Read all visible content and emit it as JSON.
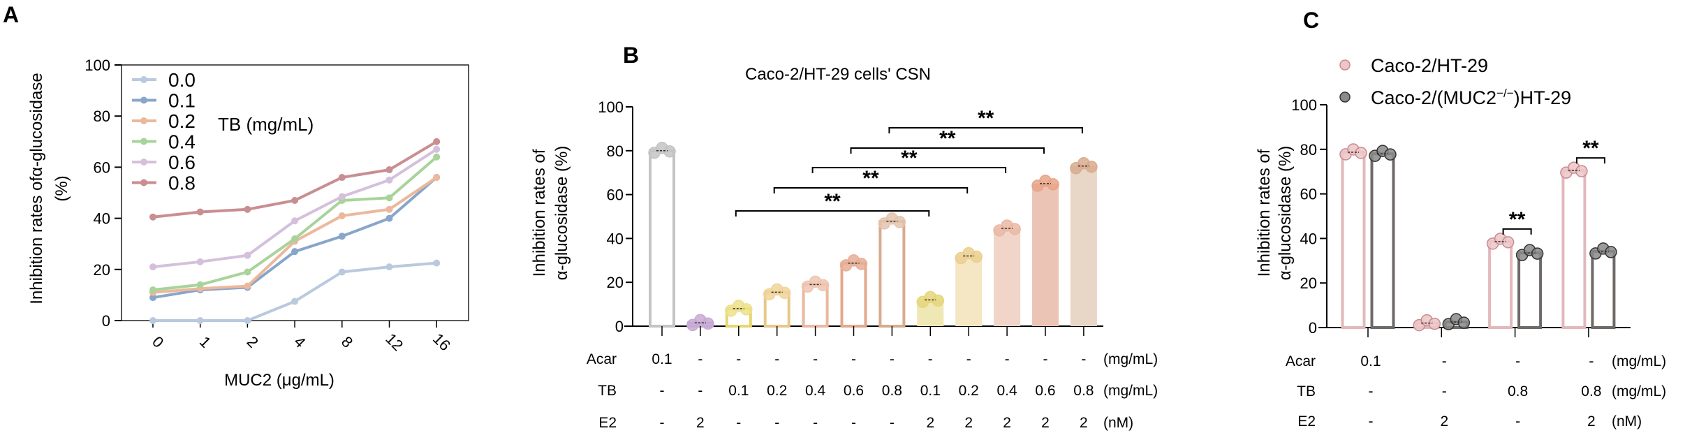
{
  "panel_labels": [
    "A",
    "B",
    "C"
  ],
  "chart_data": [
    {
      "type": "line",
      "panel": "A",
      "xlabel": "MUC2 (μg/mL)",
      "ylabel_lines": [
        "Inhibition rates ofα-glucosidase",
        "(%)"
      ],
      "categories": [
        "0",
        "1",
        "2",
        "4",
        "8",
        "12",
        "16"
      ],
      "yticks": [
        "0",
        "20",
        "40",
        "60",
        "80",
        "100"
      ],
      "ylim": [
        0,
        100
      ],
      "legend_title": "TB (mg/mL)",
      "legend_position": "top-left",
      "series": [
        {
          "name": "0.0",
          "color": "#b9c9de",
          "values": [
            0,
            0,
            0,
            7.5,
            19,
            21,
            22.5
          ]
        },
        {
          "name": "0.1",
          "color": "#87a6c9",
          "values": [
            9,
            12,
            13,
            27,
            33,
            40,
            56
          ]
        },
        {
          "name": "0.2",
          "color": "#ecb89c",
          "values": [
            11,
            12.5,
            13.5,
            31,
            41,
            43.5,
            56
          ]
        },
        {
          "name": "0.4",
          "color": "#a8d39a",
          "values": [
            12,
            14,
            19,
            32,
            47,
            48,
            64
          ]
        },
        {
          "name": "0.6",
          "color": "#d5c0dc",
          "values": [
            21,
            23,
            25.5,
            39,
            48.5,
            55,
            67
          ]
        },
        {
          "name": "0.8",
          "color": "#c98e90",
          "values": [
            40.5,
            42.5,
            43.5,
            47,
            56,
            59,
            70
          ]
        }
      ]
    },
    {
      "type": "bar",
      "panel": "B",
      "title": "Caco-2/HT-29 cells' CSN",
      "ylabel_lines": [
        "Inhibition rates of",
        "α-glucosidase (%)"
      ],
      "yticks": [
        "0",
        "20",
        "40",
        "60",
        "80",
        "100"
      ],
      "ylim": [
        0,
        100
      ],
      "values": [
        80,
        1.5,
        8,
        15.5,
        19,
        28.7,
        47.8,
        12,
        32,
        44.6,
        65,
        73
      ],
      "bar_style": [
        "open",
        "open",
        "open",
        "open",
        "open",
        "open",
        "open",
        "filled",
        "filled",
        "filled",
        "filled",
        "filled"
      ],
      "bar_colors": [
        "#c4c4c4",
        "#c7a9d3",
        "#e6d670",
        "#e8c88a",
        "#eab9a0",
        "#e4a88c",
        "#d8ab8e",
        "#efe8b4",
        "#f5e6c4",
        "#f1d5c8",
        "#ecc4b5",
        "#e8d6c6"
      ],
      "dot_colors": [
        "#c4c4c4",
        "#c7a9d3",
        "#ece08a",
        "#f0d49a",
        "#efc4b0",
        "#e8ae96",
        "#e4c4ae",
        "#e5d67a",
        "#ebcf8f",
        "#eab8a4",
        "#e8a488",
        "#d9ac8e"
      ],
      "conditions": [
        {
          "label": "Acar",
          "values": [
            "0.1",
            "-",
            "-",
            "-",
            "-",
            "-",
            "-",
            "-",
            "-",
            "-",
            "-",
            "-"
          ],
          "unit": "(mg/mL)"
        },
        {
          "label": "TB",
          "values": [
            "-",
            "-",
            "0.1",
            "0.2",
            "0.4",
            "0.6",
            "0.8",
            "0.1",
            "0.2",
            "0.4",
            "0.6",
            "0.8"
          ],
          "unit": "(mg/mL)"
        },
        {
          "label": "E2",
          "values": [
            "-",
            "2",
            "-",
            "-",
            "-",
            "-",
            "-",
            "2",
            "2",
            "2",
            "2",
            "2"
          ],
          "unit": "(nM)"
        }
      ],
      "significance": [
        {
          "from": 2,
          "to": 7,
          "label": "**"
        },
        {
          "from": 3,
          "to": 8,
          "label": "**"
        },
        {
          "from": 4,
          "to": 9,
          "label": "**"
        },
        {
          "from": 5,
          "to": 10,
          "label": "**"
        },
        {
          "from": 6,
          "to": 11,
          "label": "**"
        }
      ]
    },
    {
      "type": "bar",
      "panel": "C",
      "ylabel_lines": [
        "Inhibition rates of",
        "α-glucosidase (%)"
      ],
      "yticks": [
        "0",
        "20",
        "40",
        "60",
        "80",
        "100"
      ],
      "ylim": [
        0,
        100
      ],
      "legend_position": "top",
      "series": [
        {
          "name": "Caco-2/HT-29",
          "name_parts": [
            "Caco-2/HT-29",
            "",
            ""
          ],
          "color": "#e2b8bb",
          "dot": "#ecc6c8",
          "dot_stroke": "#c98a8f",
          "values": [
            78.7,
            2,
            38.6,
            70.5
          ]
        },
        {
          "name": "Caco-2/(MUC2−/−)HT-29",
          "name_parts": [
            "Caco-2/(MUC2",
            "−/−",
            ")HT-29"
          ],
          "color": "#6e6a68",
          "dot": "#8a8a8a",
          "dot_stroke": "#333333",
          "values": [
            78,
            2.5,
            33.5,
            34.2
          ]
        }
      ],
      "conditions": [
        {
          "label": "Acar",
          "values": [
            "0.1",
            "-",
            "-",
            "-"
          ],
          "unit": "(mg/mL)"
        },
        {
          "label": "TB",
          "values": [
            "-",
            "-",
            "0.8",
            "0.8"
          ],
          "unit": "(mg/mL)"
        },
        {
          "label": "E2",
          "values": [
            "-",
            "2",
            "-",
            "2"
          ],
          "unit": "(nM)"
        }
      ],
      "significance": [
        {
          "group": 2,
          "label": "**"
        },
        {
          "group": 3,
          "label": "**"
        }
      ]
    }
  ]
}
